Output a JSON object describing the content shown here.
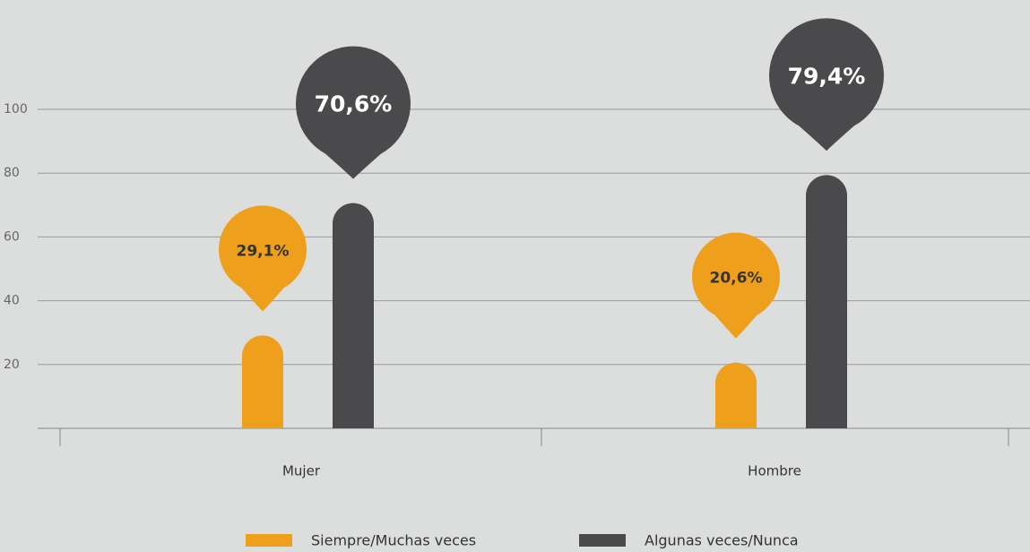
{
  "chart_data": {
    "type": "bar",
    "categories": [
      "Mujer",
      "Hombre"
    ],
    "series": [
      {
        "name": "Siempre/Muchas veces",
        "color": "#ee9f1c",
        "values": [
          29.1,
          20.6
        ],
        "value_labels": [
          "29,1%",
          "20,6%"
        ]
      },
      {
        "name": "Algunas veces/Nunca",
        "color": "#4a4a4c",
        "values": [
          70.6,
          79.4
        ],
        "value_labels": [
          "70,6%",
          "79,4%"
        ]
      }
    ],
    "ylim": [
      0,
      100
    ],
    "yticks": [
      20,
      40,
      60,
      80,
      100
    ],
    "grid": true,
    "legend": "bottom"
  }
}
